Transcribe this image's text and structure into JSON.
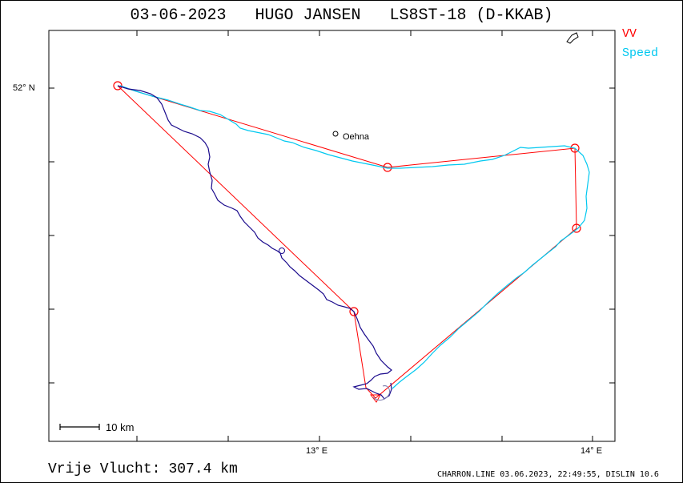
{
  "header": {
    "title": "03-06-2023   HUGO JANSEN   LS8ST-18 (D-KKAB)"
  },
  "legend": {
    "vv_label": "VV",
    "vv_color": "#ff0000",
    "speed_label": "Speed",
    "speed_color": "#00c8f0"
  },
  "axes": {
    "lat_label": "52° N",
    "lon_labels": [
      "13° E",
      "14° E"
    ]
  },
  "map": {
    "town_name": "Oehna",
    "scale_label": "10 km",
    "track_color": "#1a0a8c"
  },
  "footer": {
    "distance_caption": "Vrije Vlucht:",
    "distance_value": "307.4 km",
    "credit": "CHARRON.LINE 03.06.2023, 22:49:55, DISLIN 10.6"
  }
}
